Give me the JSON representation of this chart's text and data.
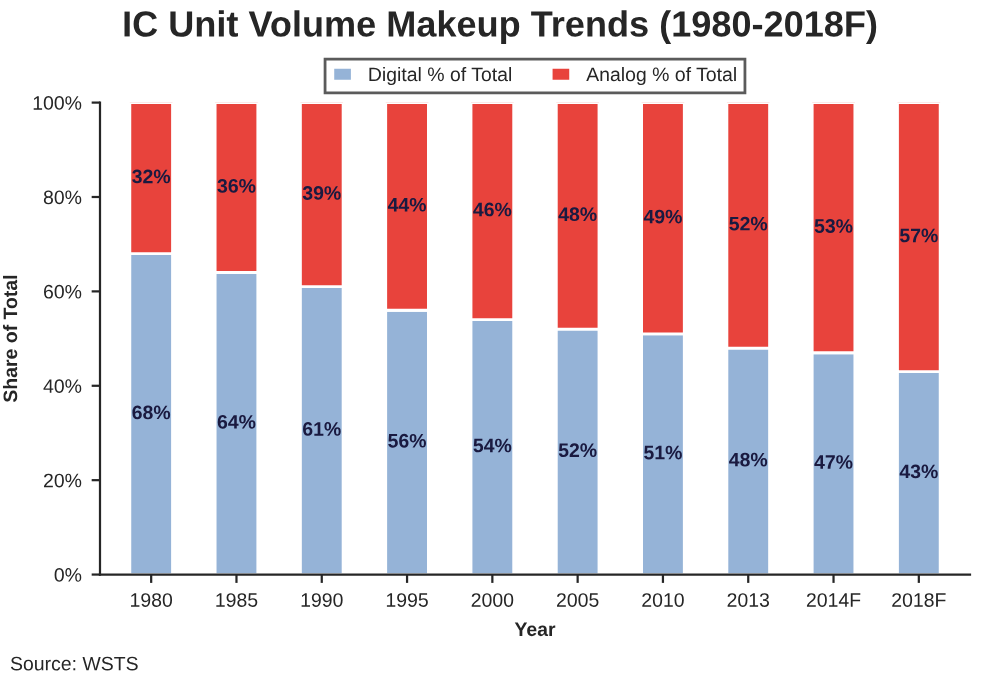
{
  "chart_data": {
    "type": "bar",
    "title": "IC Unit Volume Makeup Trends (1980-2018F)",
    "xlabel": "Year",
    "ylabel": "Share of Total",
    "categories": [
      "1980",
      "1985",
      "1990",
      "1995",
      "2000",
      "2005",
      "2010",
      "2013",
      "2014F",
      "2018F"
    ],
    "stacked": true,
    "series": [
      {
        "name": "Digital % of Total",
        "color": "#95b3d7",
        "values": [
          68,
          64,
          61,
          56,
          54,
          52,
          51,
          48,
          47,
          43
        ],
        "value_labels": [
          "68%",
          "64%",
          "61%",
          "56%",
          "54%",
          "52%",
          "51%",
          "48%",
          "47%",
          "43%"
        ]
      },
      {
        "name": "Analog % of Total",
        "color": "#e8433c",
        "values": [
          32,
          36,
          39,
          44,
          46,
          48,
          49,
          52,
          53,
          57
        ],
        "value_labels": [
          "32%",
          "36%",
          "39%",
          "44%",
          "46%",
          "48%",
          "49%",
          "52%",
          "53%",
          "57%"
        ]
      }
    ],
    "ylim": [
      0,
      100
    ],
    "yticks": [
      {
        "value": 0,
        "label": "0%"
      },
      {
        "value": 20,
        "label": "20%"
      },
      {
        "value": 40,
        "label": "40%"
      },
      {
        "value": 60,
        "label": "60%"
      },
      {
        "value": 80,
        "label": "80%"
      },
      {
        "value": 100,
        "label": "100%"
      }
    ],
    "legend": "top",
    "grid": false,
    "annotations": [
      "Source: WSTS"
    ]
  }
}
